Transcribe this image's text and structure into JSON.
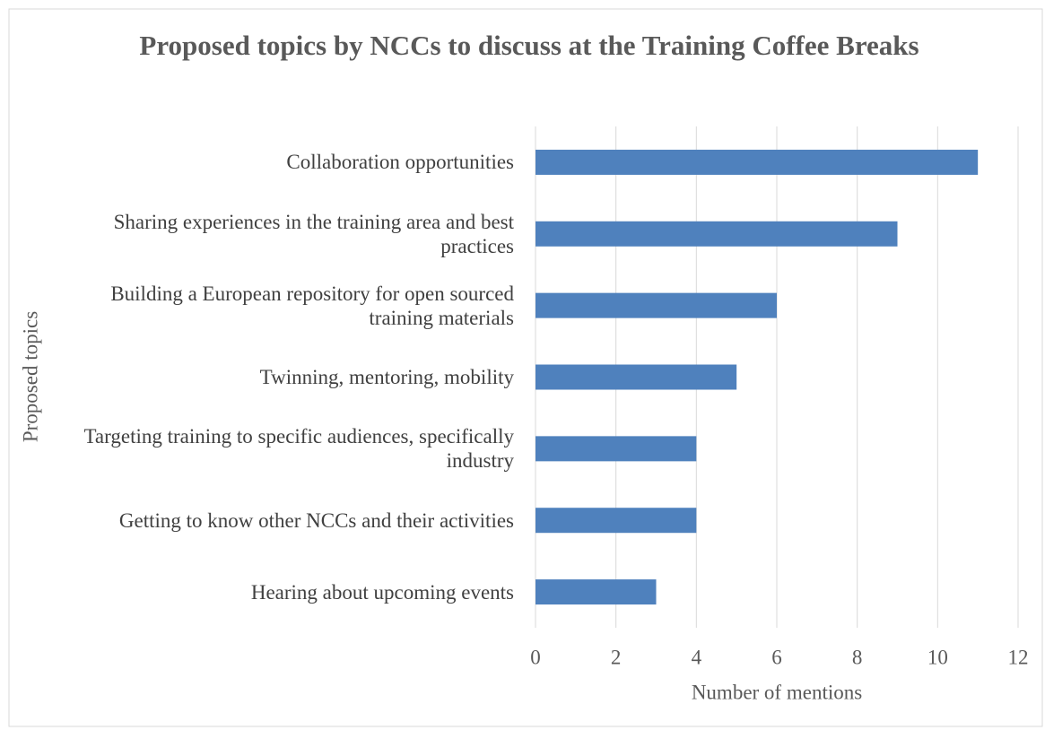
{
  "chart_data": {
    "type": "barh",
    "title": "Proposed topics by NCCs to discuss at the Training Coffee Breaks",
    "xlabel": "Number of mentions",
    "ylabel": "Proposed topics",
    "categories": [
      "Collaboration opportunities",
      "Sharing experiences in the training area and best practices",
      "Building a European repository for open sourced training materials",
      "Twinning, mentoring, mobility",
      "Targeting training to specific audiences, specifically industry",
      "Getting to know other NCCs and their activities",
      "Hearing about upcoming events"
    ],
    "values": [
      11,
      9,
      6,
      5,
      4,
      4,
      3
    ],
    "color": "#4f81bd",
    "xlim": [
      0,
      12
    ],
    "xticks": [
      0,
      2,
      4,
      6,
      8,
      10,
      12
    ],
    "grid": true
  }
}
